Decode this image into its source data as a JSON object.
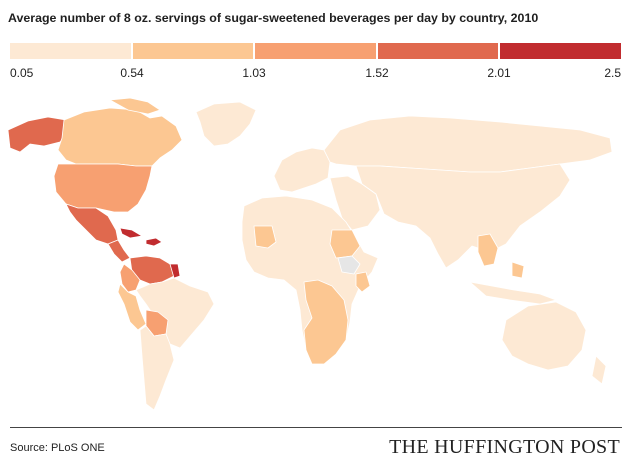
{
  "title": "Average number of 8 oz. servings of sugar-sweetened beverages per day by country, 2010",
  "legend": {
    "ticks": [
      "0.05",
      "0.54",
      "1.03",
      "1.52",
      "2.01",
      "2.5"
    ],
    "bins": [
      {
        "range": "0.05–0.54",
        "color": "#fde9d4"
      },
      {
        "range": "0.54–1.03",
        "color": "#fcc792"
      },
      {
        "range": "1.03–1.52",
        "color": "#f7a071"
      },
      {
        "range": "1.52–2.01",
        "color": "#e0694e"
      },
      {
        "range": "2.01–2.5",
        "color": "#c12c2f"
      }
    ],
    "no_data_color": "#e6e6e6"
  },
  "regions": [
    {
      "name": "Alaska",
      "class": 3
    },
    {
      "name": "Canada",
      "class": 1
    },
    {
      "name": "Greenland",
      "class": 0
    },
    {
      "name": "United States",
      "class": 2
    },
    {
      "name": "Mexico",
      "class": 3
    },
    {
      "name": "Cuba",
      "class": 4
    },
    {
      "name": "Caribbean",
      "class": 4
    },
    {
      "name": "Central America",
      "class": 3
    },
    {
      "name": "Venezuela / Guianas",
      "class": 3
    },
    {
      "name": "Colombia",
      "class": 2
    },
    {
      "name": "Suriname",
      "class": 4
    },
    {
      "name": "Ecuador / Peru",
      "class": 1
    },
    {
      "name": "Brazil",
      "class": 0
    },
    {
      "name": "Bolivia",
      "class": 2
    },
    {
      "name": "Southern Cone",
      "class": 0
    },
    {
      "name": "Europe",
      "class": 0
    },
    {
      "name": "Russia",
      "class": 0
    },
    {
      "name": "Middle East",
      "class": 0
    },
    {
      "name": "Africa",
      "class": 0
    },
    {
      "name": "Mali",
      "class": 1
    },
    {
      "name": "Sudan",
      "class": 1
    },
    {
      "name": "Ethiopia",
      "class": -1
    },
    {
      "name": "Kenya",
      "class": 1
    },
    {
      "name": "Southern Africa",
      "class": 1
    },
    {
      "name": "Asia",
      "class": 0
    },
    {
      "name": "Southeast Asia",
      "class": 1
    },
    {
      "name": "Philippines",
      "class": 1
    },
    {
      "name": "Australia",
      "class": 0
    }
  ],
  "source": "Source: PLoS ONE",
  "brand": "THE HUFFINGTON POST"
}
